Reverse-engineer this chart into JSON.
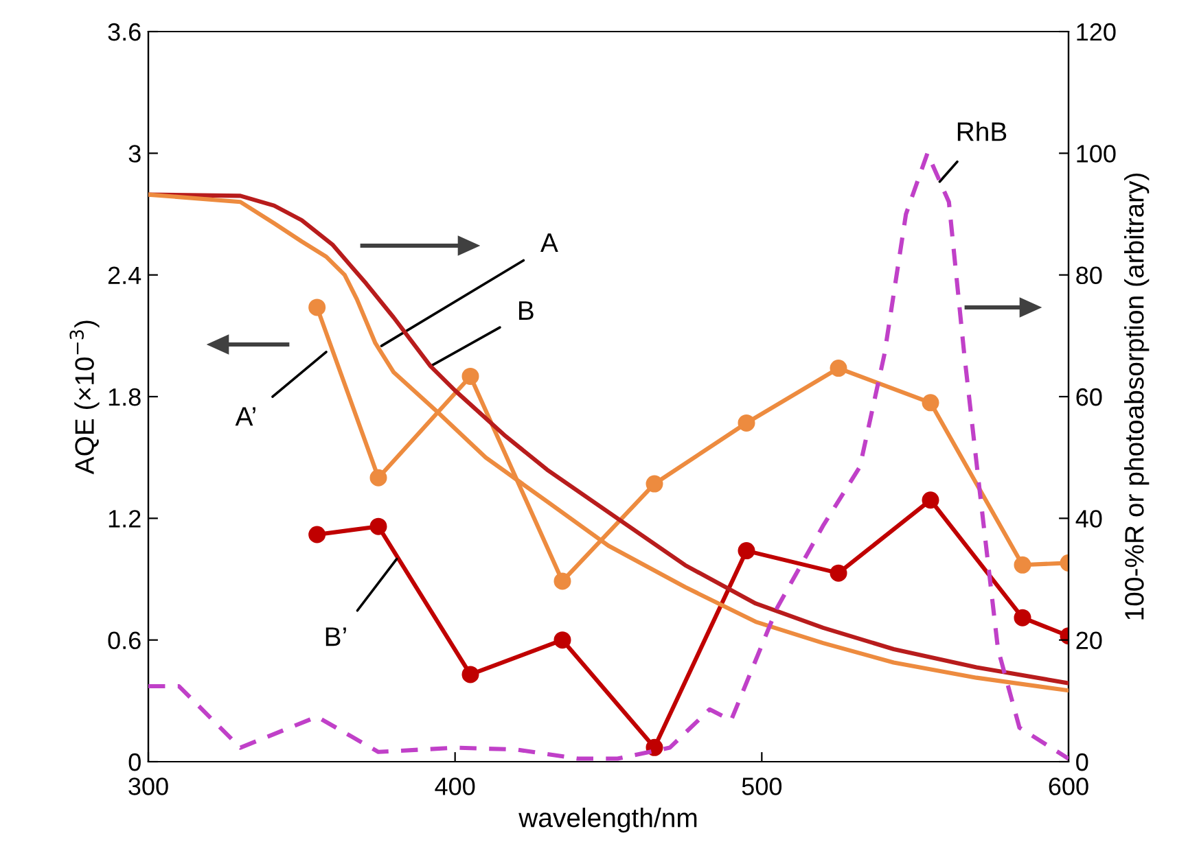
{
  "chart_data": {
    "type": "line",
    "xlabel": "wavelength/nm",
    "ylabel": "AQE (×10$^{−3}$)",
    "y2label": "100-%R or photoabsorption (arbitrary)",
    "xlim": [
      300,
      600
    ],
    "xticks": [
      300,
      400,
      500,
      600
    ],
    "ylim": [
      0,
      3.6
    ],
    "yticks": [
      0,
      0.6,
      1.2,
      1.8,
      2.4,
      3,
      3.6
    ],
    "y2lim": [
      0,
      120
    ],
    "y2ticks": [
      0,
      20,
      40,
      60,
      80,
      100,
      120
    ],
    "grid": false,
    "series": [
      {
        "color": "#b81c1c",
        "axis": "y2",
        "marker": "none",
        "line_style": "solid",
        "x": [
          300,
          330,
          341,
          350,
          360,
          371,
          380,
          392,
          400,
          416,
          430,
          446,
          475,
          498,
          520,
          543,
          570,
          600
        ],
        "values": [
          93.2,
          93,
          91.4,
          89,
          85,
          78.6,
          73,
          65,
          61,
          53.7,
          48,
          42.4,
          32.3,
          26,
          22,
          18.5,
          15.5,
          12.9
        ]
      },
      {
        "color": "#ed8b3f",
        "axis": "y2",
        "marker": "none",
        "line_style": "solid",
        "x": [
          300,
          330,
          341,
          350,
          358,
          364,
          368,
          374,
          380,
          394,
          410,
          431,
          450,
          475,
          498,
          520,
          543,
          570,
          600
        ],
        "values": [
          93.2,
          92,
          88.5,
          85.5,
          83,
          80,
          76,
          68.8,
          64,
          57.6,
          50,
          42.4,
          35.5,
          28.7,
          23,
          19.5,
          16.3,
          13.8,
          11.7
        ]
      },
      {
        "color": "#ed8b3f",
        "marker": "circle",
        "line_style": "solid",
        "x": [
          355,
          375,
          405,
          435,
          465,
          495,
          525,
          555,
          585,
          600
        ],
        "values": [
          2.24,
          1.4,
          1.9,
          0.89,
          1.37,
          1.67,
          1.94,
          1.77,
          0.97,
          0.98
        ]
      },
      {
        "color": "#c00000",
        "marker": "circle",
        "line_style": "solid",
        "x": [
          355,
          375,
          405,
          435,
          465,
          495,
          525,
          555,
          585,
          600
        ],
        "values": [
          1.12,
          1.16,
          0.43,
          0.6,
          0.07,
          1.04,
          0.93,
          1.29,
          0.71,
          0.62
        ]
      },
      {
        "color": "#c040c8",
        "axis": "y2",
        "marker": "none",
        "line_style": "dashed",
        "x": [
          300,
          310,
          330,
          355,
          375,
          400,
          420,
          440,
          453,
          470,
          483,
          490,
          505,
          520,
          532,
          540,
          547,
          554,
          561,
          566,
          571,
          577,
          584,
          600
        ],
        "values": [
          12.4,
          12.4,
          2.3,
          7.4,
          1.6,
          2.3,
          2,
          0.5,
          0.5,
          2.3,
          8.6,
          6.8,
          25.3,
          38.8,
          48.5,
          67,
          90,
          100,
          92,
          67,
          44.7,
          18.5,
          5.6,
          0.5
        ]
      }
    ],
    "annotations": [
      {
        "text": "A",
        "x": 376,
        "y": 2.05
      },
      {
        "text": "B",
        "x": 392,
        "y": 1.95
      },
      {
        "text": "A’",
        "x": 358,
        "y": 2.02
      },
      {
        "text": "B’",
        "x": 381,
        "y": 1.0
      },
      {
        "text": "RhB",
        "x": 558,
        "y": 2.86
      }
    ]
  }
}
